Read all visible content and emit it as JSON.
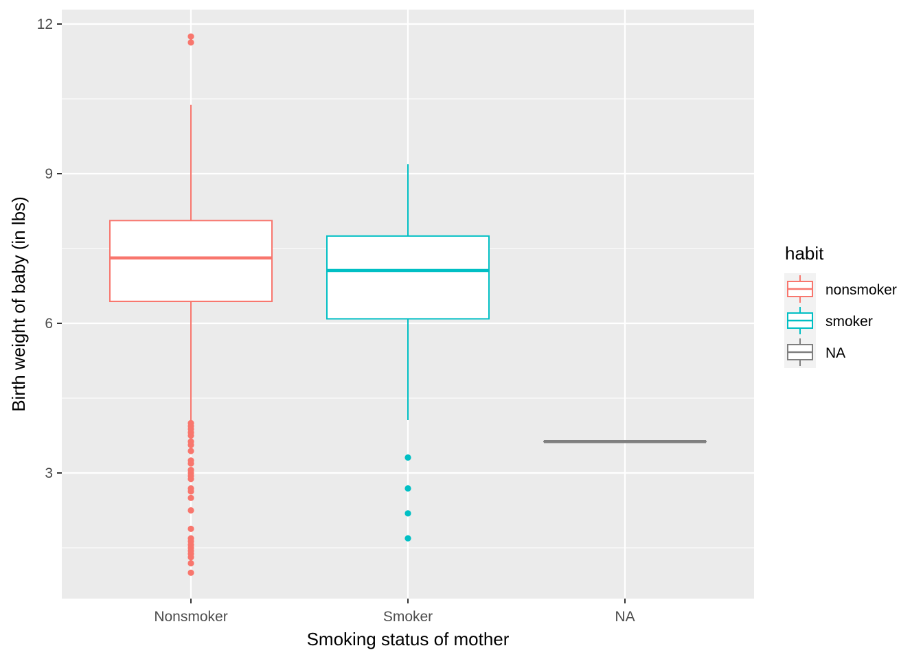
{
  "chart_data": {
    "type": "box",
    "title": "",
    "xlabel": "Smoking status of mother",
    "ylabel": "Birth weight of baby (in lbs)",
    "ylim": [
      0.5,
      12.3
    ],
    "y_ticks": [
      3,
      6,
      9,
      12
    ],
    "y_tick_labels": [
      "3",
      "6",
      "9",
      "12"
    ],
    "categories": [
      "Nonsmoker",
      "Smoker",
      "NA"
    ],
    "grid": true,
    "legend": {
      "title": "habit",
      "position": "right",
      "entries": [
        "nonsmoker",
        "smoker",
        "NA"
      ]
    },
    "colors": {
      "nonsmoker": "#F8766D",
      "smoker": "#00BFC4",
      "NA": "#7F7F7F",
      "panel_bg": "#EBEBEB",
      "grid": "#FFFFFF"
    },
    "series": [
      {
        "category": "Nonsmoker",
        "group": "nonsmoker",
        "color": "#F8766D",
        "whisker_low": 4.06,
        "q1": 6.44,
        "median": 7.31,
        "q3": 8.06,
        "whisker_high": 10.38,
        "outliers": [
          11.75,
          11.63,
          4.0,
          3.94,
          3.88,
          3.81,
          3.75,
          3.63,
          3.56,
          3.44,
          3.25,
          3.19,
          3.06,
          3.0,
          2.94,
          2.88,
          2.69,
          2.63,
          2.5,
          2.25,
          1.88,
          1.69,
          1.63,
          1.56,
          1.5,
          1.44,
          1.38,
          1.31,
          1.19,
          1.0
        ]
      },
      {
        "category": "Smoker",
        "group": "smoker",
        "color": "#00BFC4",
        "whisker_low": 4.06,
        "q1": 6.09,
        "median": 7.06,
        "q3": 7.75,
        "whisker_high": 9.19,
        "outliers": [
          3.31,
          2.69,
          2.19,
          1.69
        ]
      },
      {
        "category": "NA",
        "group": "NA",
        "color": "#7F7F7F",
        "whisker_low": 3.63,
        "q1": 3.63,
        "median": 3.63,
        "q3": 3.63,
        "whisker_high": 3.63,
        "outliers": []
      }
    ]
  }
}
